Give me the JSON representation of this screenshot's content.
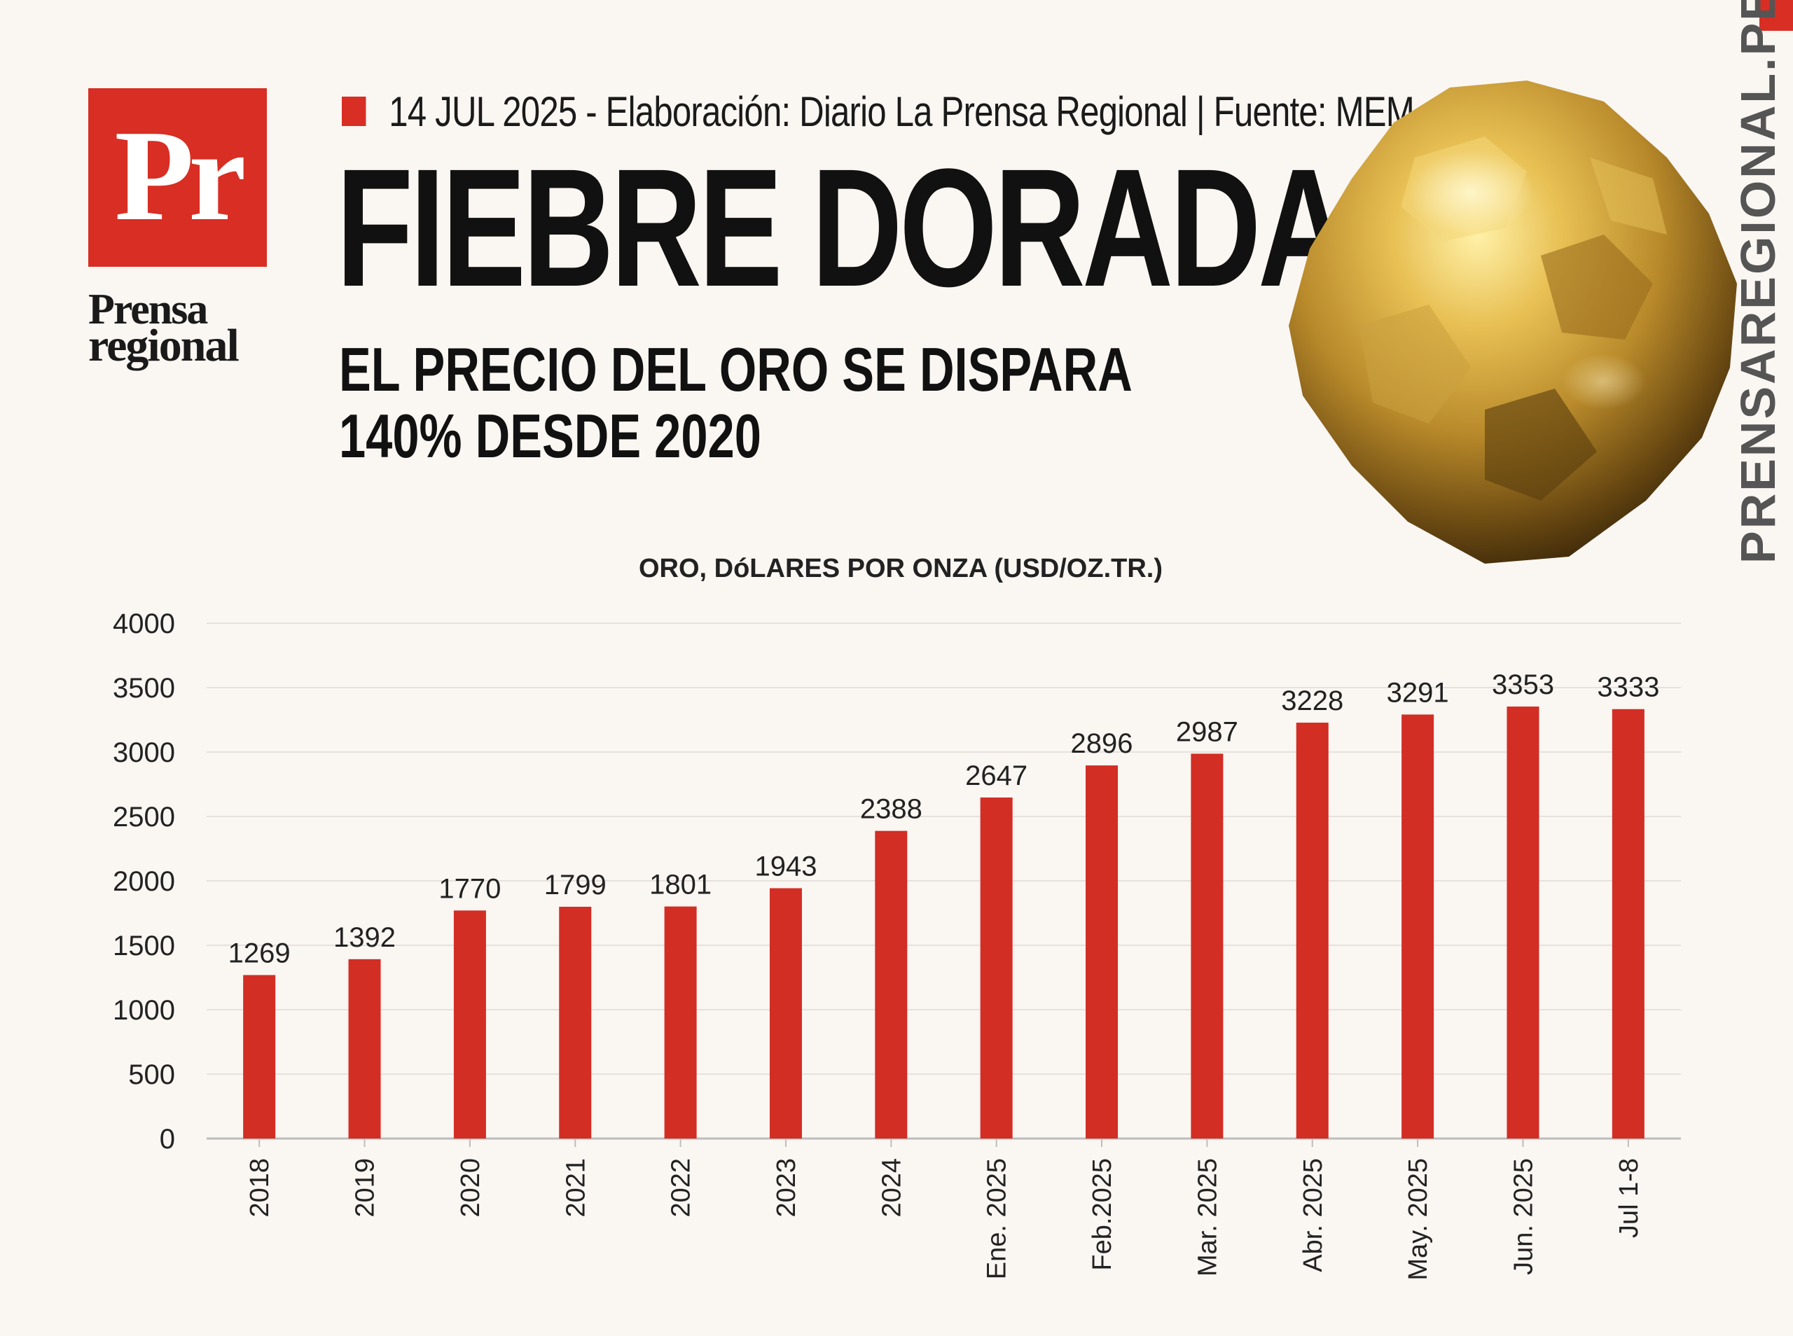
{
  "header": {
    "logo_mark": "Pr",
    "brand_line1": "Prensa",
    "brand_line2": "regional",
    "meta": "14 JUL 2025 -  Elaboración: Diario La Prensa Regional | Fuente: MEM",
    "title": "FIEBRE DORADA",
    "subtitle_line1": "EL PRECIO DEL ORO SE DISPARA",
    "subtitle_line2": "140% DESDE 2020",
    "side_text": "PRENSAREGIONAL.PE"
  },
  "colors": {
    "accent": "#d82e24",
    "background": "#faf6f2",
    "bar": "#d22e24",
    "text": "#111111"
  },
  "chart_data": {
    "type": "bar",
    "title": "ORO,  DóLARES POR ONZA (USD/OZ.TR.)",
    "xlabel": "",
    "ylabel": "",
    "categories": [
      "2018",
      "2019",
      "2020",
      "2021",
      "2022",
      "2023",
      "2024",
      "Ene. 2025",
      "Feb.2025",
      "Mar. 2025",
      "Abr. 2025",
      "May. 2025",
      "Jun. 2025",
      "Jul 1-8"
    ],
    "values": [
      1269,
      1392,
      1770,
      1799,
      1801,
      1943,
      2388,
      2647,
      2896,
      2987,
      3228,
      3291,
      3353,
      3333
    ],
    "ylim": [
      0,
      4000
    ],
    "yticks": [
      0,
      500,
      1000,
      1500,
      2000,
      2500,
      3000,
      3500,
      4000
    ],
    "grid": true,
    "legend": "none"
  }
}
